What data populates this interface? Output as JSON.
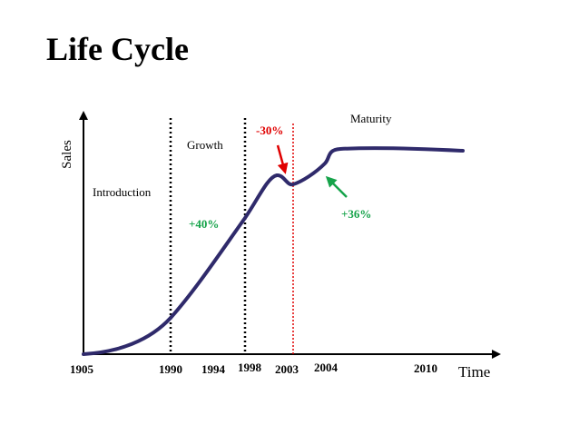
{
  "title": "Life Cycle",
  "axes": {
    "y_label": "Sales",
    "x_label": "Time"
  },
  "stages": {
    "introduction": "Introduction",
    "growth": "Growth",
    "maturity": "Maturity"
  },
  "years": {
    "y1905": "1905",
    "y1990": "1990",
    "y1994": "1994",
    "y1998": "1998",
    "y2003": "2003",
    "y2004": "2004",
    "y2010": "2010"
  },
  "annotations": {
    "growth_rate": "+40%",
    "drop": "-30%",
    "recovery": "+36%"
  },
  "colors": {
    "curve": "#2f2a6b",
    "drop": "#e00000",
    "rise": "#16a34a",
    "axis": "#000000"
  }
}
